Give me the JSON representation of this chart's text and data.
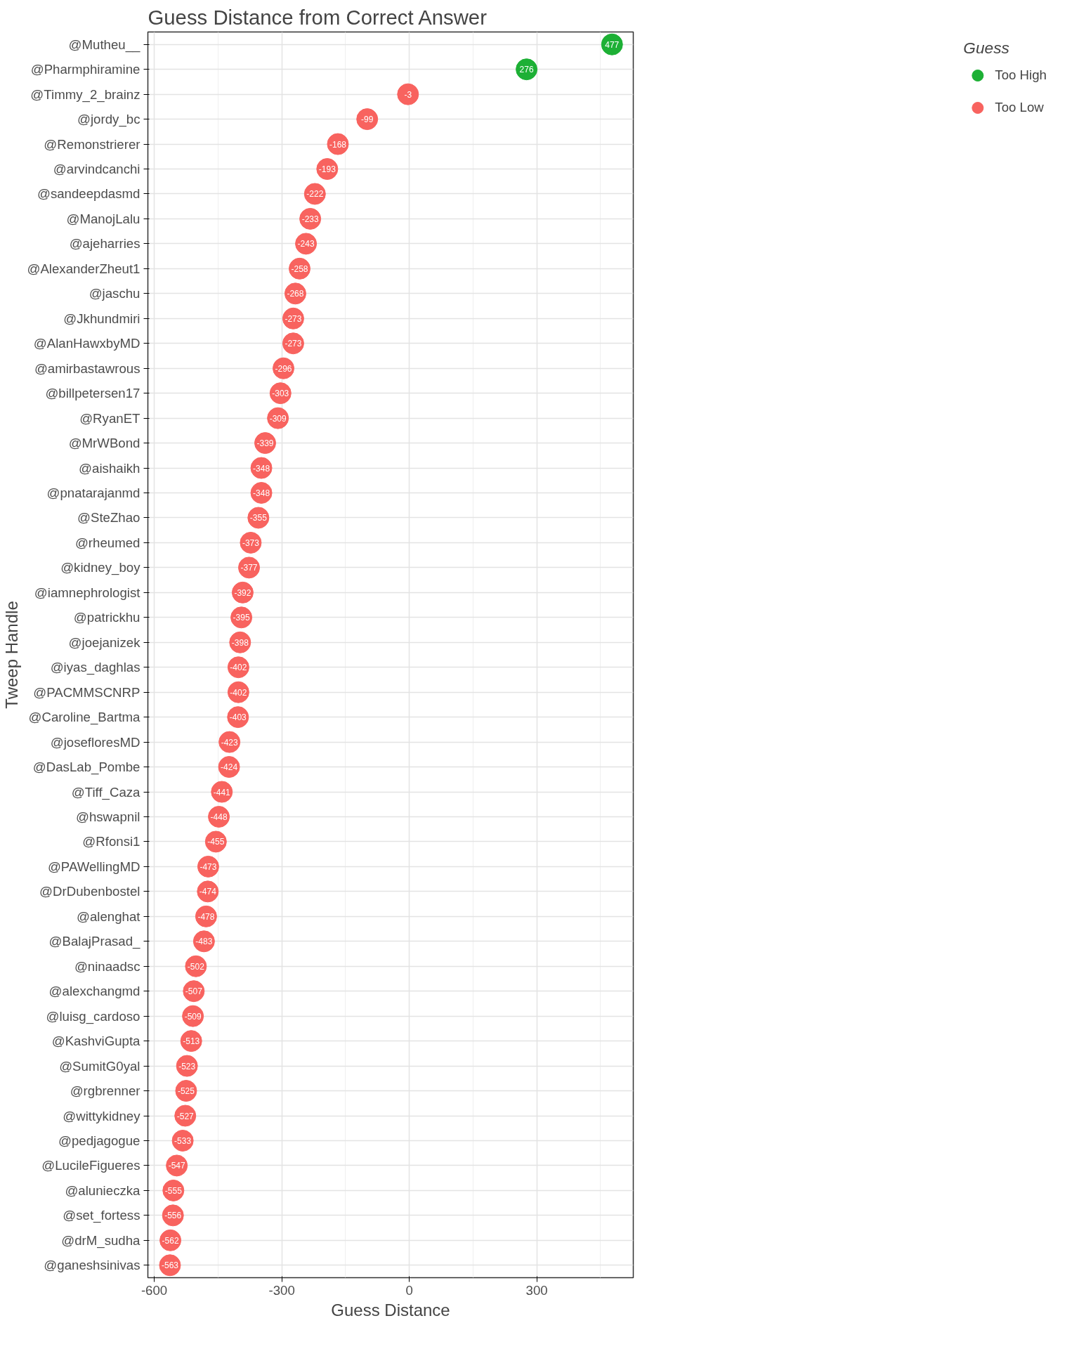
{
  "chart_data": {
    "type": "scatter",
    "orientation": "horizontal",
    "title": "Guess Distance from Correct Answer",
    "xlabel": "Guess Distance",
    "ylabel": "Tweep Handle",
    "legend_title": "Guess",
    "legend": "right",
    "grid": true,
    "data_labels": true,
    "marker": "circle",
    "xlim": [
      -615,
      527
    ],
    "xticks": [
      -600,
      -300,
      0,
      300
    ],
    "categories": [
      "@Mutheu__",
      "@Pharmphiramine",
      "@Timmy_2_brainz",
      "@jordy_bc",
      "@Remonstrierer",
      "@arvindcanchi",
      "@sandeepdasmd",
      "@ManojLalu",
      "@ajeharries",
      "@AlexanderZheut1",
      "@jaschu",
      "@Jkhundmiri",
      "@AlanHawxbyMD",
      "@amirbastawrous",
      "@billpetersen17",
      "@RyanET",
      "@MrWBond",
      "@aishaikh",
      "@pnatarajanmd",
      "@SteZhao",
      "@rheumed",
      "@kidney_boy",
      "@iamnephrologist",
      "@patrickhu",
      "@joejanizek",
      "@iyas_daghlas",
      "@PACMMSCNRP",
      "@Caroline_Bartma",
      "@josefloresMD",
      "@DasLab_Pombe",
      "@Tiff_Caza",
      "@hswapnil",
      "@Rfonsi1",
      "@PAWellingMD",
      "@DrDubenbostel",
      "@alenghat",
      "@BalajPrasad_",
      "@ninaadsc",
      "@alexchangmd",
      "@luisg_cardoso",
      "@KashviGupta",
      "@SumitG0yal",
      "@rgbrenner",
      "@wittykidney",
      "@pedjagogue",
      "@LucileFigueres",
      "@alunieczka",
      "@set_fortess",
      "@drM_sudha",
      "@ganeshsinivas"
    ],
    "series": [
      {
        "name": "Too High",
        "color": "#1db035",
        "values": [
          477,
          276,
          null,
          null,
          null,
          null,
          null,
          null,
          null,
          null,
          null,
          null,
          null,
          null,
          null,
          null,
          null,
          null,
          null,
          null,
          null,
          null,
          null,
          null,
          null,
          null,
          null,
          null,
          null,
          null,
          null,
          null,
          null,
          null,
          null,
          null,
          null,
          null,
          null,
          null,
          null,
          null,
          null,
          null,
          null,
          null,
          null,
          null,
          null,
          null
        ]
      },
      {
        "name": "Too Low",
        "color": "#f8635f",
        "values": [
          null,
          null,
          -3,
          -99,
          -168,
          -193,
          -222,
          -233,
          -243,
          -258,
          -268,
          -273,
          -273,
          -296,
          -303,
          -309,
          -339,
          -348,
          -348,
          -355,
          -373,
          -377,
          -392,
          -395,
          -398,
          -402,
          -402,
          -403,
          -423,
          -424,
          -441,
          -448,
          -455,
          -473,
          -474,
          -478,
          -483,
          -502,
          -507,
          -509,
          -513,
          -523,
          -525,
          -527,
          -533,
          -547,
          -555,
          -556,
          -562,
          -563
        ]
      }
    ]
  }
}
